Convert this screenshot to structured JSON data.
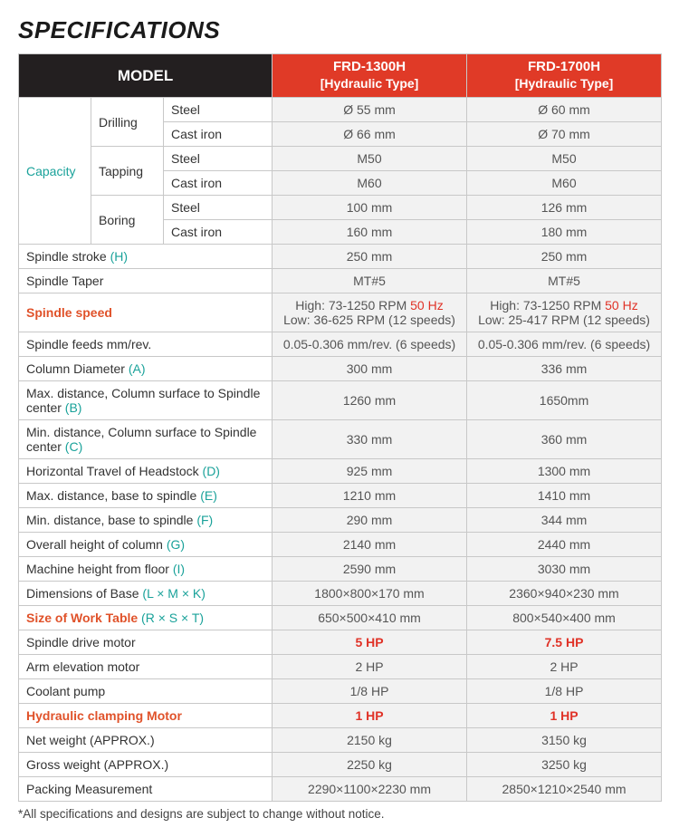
{
  "title": "SPECIFICATIONS",
  "header": {
    "model_label": "MODEL",
    "cols": [
      {
        "name": "FRD-1300H",
        "sub": "[Hydraulic Type]"
      },
      {
        "name": "FRD-1700H",
        "sub": "[Hydraulic Type]"
      }
    ]
  },
  "capacity": {
    "label": "Capacity",
    "groups": [
      {
        "label": "Drilling",
        "rows": [
          {
            "mat": "Steel",
            "v": [
              "Ø 55 mm",
              "Ø 60 mm"
            ]
          },
          {
            "mat": "Cast iron",
            "v": [
              "Ø 66 mm",
              "Ø 70 mm"
            ]
          }
        ]
      },
      {
        "label": "Tapping",
        "rows": [
          {
            "mat": "Steel",
            "v": [
              "M50",
              "M50"
            ]
          },
          {
            "mat": "Cast iron",
            "v": [
              "M60",
              "M60"
            ]
          }
        ]
      },
      {
        "label": "Boring",
        "rows": [
          {
            "mat": "Steel",
            "v": [
              "100 mm",
              "126 mm"
            ]
          },
          {
            "mat": "Cast iron",
            "v": [
              "160 mm",
              "180 mm"
            ]
          }
        ]
      }
    ]
  },
  "rows": [
    {
      "label": "Spindle stroke",
      "suffix": " (H)",
      "suffix_teal": true,
      "v": [
        "250 mm",
        "250 mm"
      ]
    },
    {
      "label": "Spindle Taper",
      "v": [
        "MT#5",
        "MT#5"
      ]
    },
    {
      "label": "Spindle speed",
      "label_orange": true,
      "v_rich": [
        {
          "line1_pre": "High: 73-1250 RPM ",
          "hz": "50 Hz",
          "line2": "Low: 36-625 RPM (12 speeds)"
        },
        {
          "line1_pre": "High: 73-1250 RPM ",
          "hz": "50 Hz",
          "line2": "Low: 25-417 RPM (12 speeds)"
        }
      ]
    },
    {
      "label": "Spindle feeds   mm/rev.",
      "v": [
        "0.05-0.306 mm/rev. (6 speeds)",
        "0.05-0.306 mm/rev. (6 speeds)"
      ]
    },
    {
      "label": "Column Diameter",
      "suffix": " (A)",
      "suffix_teal": true,
      "v": [
        "300 mm",
        "336 mm"
      ]
    },
    {
      "label": "Max. distance, Column surface to Spindle center",
      "suffix": " (B)",
      "suffix_teal": true,
      "v": [
        "1260 mm",
        "1650mm"
      ]
    },
    {
      "label": "Min. distance, Column surface to Spindle center",
      "suffix": " (C)",
      "suffix_teal": true,
      "v": [
        "330 mm",
        "360 mm"
      ]
    },
    {
      "label": "Horizontal Travel of Headstock",
      "suffix": " (D)",
      "suffix_teal": true,
      "v": [
        "925 mm",
        "1300 mm"
      ]
    },
    {
      "label": "Max. distance, base to spindle",
      "suffix": " (E)",
      "suffix_teal": true,
      "v": [
        "1210 mm",
        "1410 mm"
      ]
    },
    {
      "label": "Min. distance, base to spindle",
      "suffix": " (F)",
      "suffix_teal": true,
      "v": [
        "290 mm",
        "344 mm"
      ]
    },
    {
      "label": "Overall height of column",
      "suffix": " (G)",
      "suffix_teal": true,
      "v": [
        "2140 mm",
        "2440 mm"
      ]
    },
    {
      "label": "Machine height from floor",
      "suffix": " (I)",
      "suffix_teal": true,
      "v": [
        "2590 mm",
        "3030 mm"
      ]
    },
    {
      "label": "Dimensions of Base",
      "suffix": " (L × M × K)",
      "suffix_teal": true,
      "v": [
        "1800×800×170 mm",
        "2360×940×230 mm"
      ]
    },
    {
      "label": "Size of Work Table",
      "label_orange": true,
      "suffix": " (R × S × T)",
      "suffix_teal": true,
      "v": [
        "650×500×410 mm",
        "800×540×400 mm"
      ]
    },
    {
      "label": "Spindle drive motor",
      "v": [
        "5 HP",
        "7.5 HP"
      ],
      "value_red": true
    },
    {
      "label": "Arm elevation motor",
      "v": [
        "2 HP",
        "2 HP"
      ]
    },
    {
      "label": "Coolant pump",
      "v": [
        "1/8 HP",
        "1/8 HP"
      ]
    },
    {
      "label": "Hydraulic clamping Motor",
      "label_orange": true,
      "v": [
        "1 HP",
        "1 HP"
      ],
      "value_red": true
    },
    {
      "label": "Net weight (APPROX.)",
      "v": [
        "2150 kg",
        "3150 kg"
      ]
    },
    {
      "label": "Gross weight (APPROX.)",
      "v": [
        "2250 kg",
        "3250 kg"
      ]
    },
    {
      "label": "Packing Measurement",
      "v": [
        "2290×1100×2230 mm",
        "2850×1210×2540 mm"
      ]
    }
  ],
  "footnote": "*All specifications and designs are subject to change without notice."
}
